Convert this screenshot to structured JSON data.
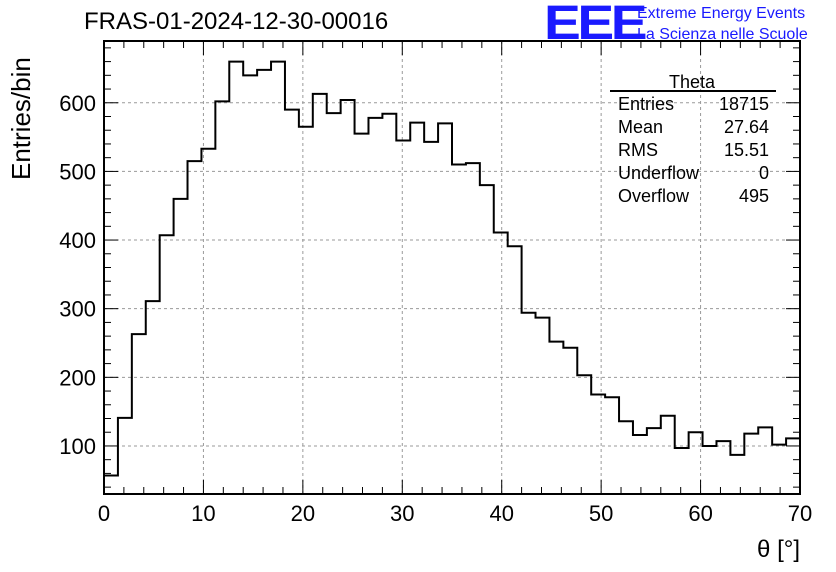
{
  "header": {
    "title": "FRAS-01-2024-12-30-00016",
    "logo_text": "EEE",
    "logo_line1": "Extreme Energy Events",
    "logo_line2": "La Scienza nelle Scuole",
    "logo_color": "#1a1aff"
  },
  "stats": {
    "name": "Theta",
    "rows": [
      {
        "label": "Entries",
        "value": "18715"
      },
      {
        "label": "Mean",
        "value": "27.64"
      },
      {
        "label": "RMS",
        "value": "15.51"
      },
      {
        "label": "Underflow",
        "value": "0"
      },
      {
        "label": "Overflow",
        "value": "495"
      }
    ]
  },
  "chart_data": {
    "type": "histogram",
    "title": "FRAS-01-2024-12-30-00016",
    "xlabel": "θ [°]",
    "ylabel": "Entries/bin",
    "xlim": [
      0,
      70
    ],
    "ylim": [
      30,
      690
    ],
    "grid": true,
    "bin_width": 1.4,
    "bin_edges_start": 0,
    "x_ticks": [
      0,
      10,
      20,
      30,
      40,
      50,
      60,
      70
    ],
    "y_ticks": [
      100,
      200,
      300,
      400,
      500,
      600
    ],
    "values": [
      57,
      141,
      263,
      311,
      407,
      460,
      515,
      533,
      602,
      660,
      640,
      648,
      660,
      590,
      565,
      613,
      585,
      604,
      555,
      578,
      584,
      545,
      571,
      543,
      570,
      510,
      512,
      480,
      411,
      391,
      294,
      287,
      252,
      243,
      203,
      175,
      171,
      136,
      116,
      126,
      144,
      97,
      120,
      100,
      107,
      87,
      118,
      127,
      102,
      111
    ],
    "line_color": "#000000"
  }
}
